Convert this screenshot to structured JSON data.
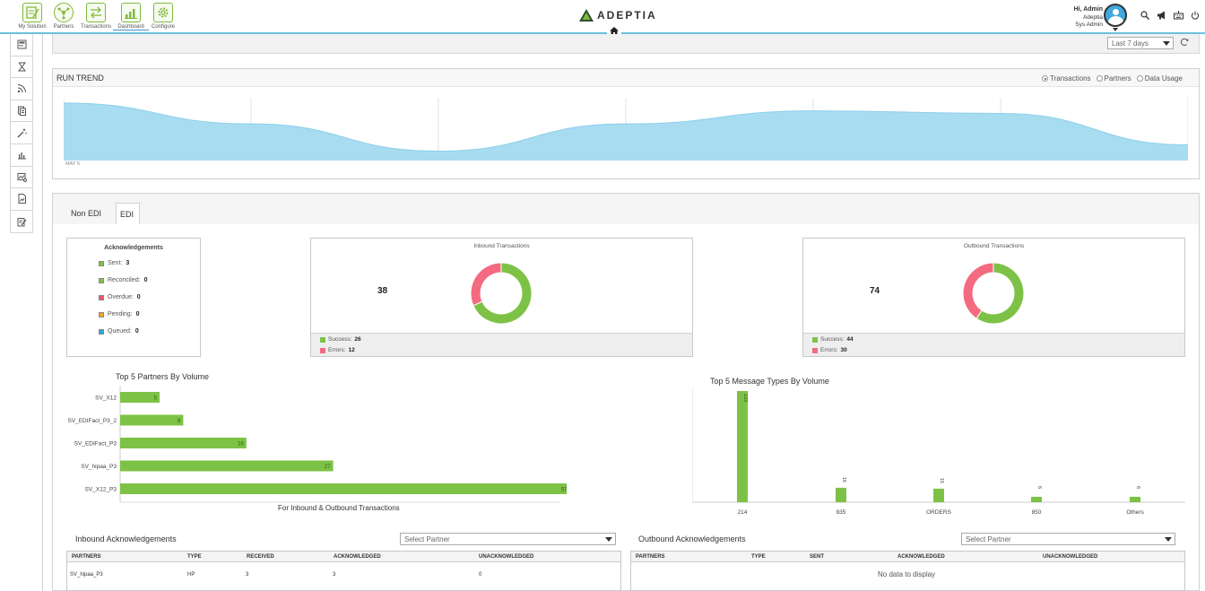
{
  "nav": {
    "items": [
      {
        "label": "My Solution",
        "icon": "my-solution-icon"
      },
      {
        "label": "Partners",
        "icon": "partners-icon"
      },
      {
        "label": "Transactions",
        "icon": "transactions-icon"
      },
      {
        "label": "Dashboard",
        "icon": "dashboard-icon",
        "active": true
      },
      {
        "label": "Configure",
        "icon": "configure-icon"
      }
    ],
    "brand": "ADEPTIA"
  },
  "user": {
    "greeting": "Hi, Admin",
    "company": "Adeptia",
    "role": "Sys Admin"
  },
  "filter": {
    "range": "Last 7 days"
  },
  "run_trend": {
    "title": "RUN TREND",
    "options": [
      "Transactions",
      "Partners",
      "Data Usage"
    ],
    "selected": "Transactions",
    "axis_label": "MAY 6"
  },
  "tabs": [
    "Non EDI",
    "EDI"
  ],
  "active_tab": "EDI",
  "acknowledgements": {
    "title": "Acknowledgements",
    "items": [
      {
        "label": "Sent:",
        "value": "3",
        "color": "#7dc246"
      },
      {
        "label": "Reconciled:",
        "value": "0",
        "color": "#7dc246"
      },
      {
        "label": "Overdue:",
        "value": "0",
        "color": "#f0566e"
      },
      {
        "label": "Pending:",
        "value": "0",
        "color": "#f5a623"
      },
      {
        "label": "Queued:",
        "value": "0",
        "color": "#29a8e0"
      }
    ]
  },
  "inbound": {
    "title": "Inbound Transactions",
    "total": "38",
    "success_label": "Success:",
    "success": 26,
    "errors_label": "Errors:",
    "errors": 12
  },
  "outbound": {
    "title": "Outbound Transactions",
    "total": "74",
    "success_label": "Success:",
    "success": 44,
    "errors_label": "Errors:",
    "errors": 30
  },
  "colors": {
    "success": "#7dc246",
    "error": "#f46a80",
    "trend": "#a8dcf1"
  },
  "chart_data": [
    {
      "type": "area",
      "title": "RUN TREND",
      "x": [
        "MAY 6",
        "",
        "",
        "",
        "",
        "",
        ""
      ],
      "values": [
        110,
        70,
        18,
        70,
        95,
        90,
        30
      ],
      "grid": true
    },
    {
      "type": "bar",
      "orientation": "horizontal",
      "title": "Top 5 Partners By Volume",
      "xlabel": "For Inbound & Outbound Transactions",
      "categories": [
        "SV_X12",
        "SV_EDIFact_P3_2",
        "SV_EDIFact_P3",
        "SV_hipaa_P3",
        "SV_X12_P3"
      ],
      "values": [
        5,
        8,
        16,
        27,
        57
      ],
      "xlim": [
        0,
        60
      ]
    },
    {
      "type": "bar",
      "title": "Top 5 Message Types By Volume",
      "categories": [
        "214",
        "835",
        "ORDERS",
        "850",
        "Others"
      ],
      "values": [
        123,
        16,
        15,
        6,
        6
      ],
      "ylim": [
        0,
        123
      ]
    }
  ],
  "charts_text": {
    "partners_title": "Top 5 Partners By Volume",
    "partners_caption": "For Inbound & Outbound Transactions",
    "messages_title": "Top 5 Message Types By Volume"
  },
  "inbound_acks": {
    "title": "Inbound Acknowledgements",
    "select_placeholder": "Select Partner",
    "columns": [
      "PARTNERS",
      "TYPE",
      "RECEIVED",
      "ACKNOWLEDGED",
      "UNACKNOWLEDGED"
    ],
    "rows": [
      [
        "SV_hipaa_P3",
        "HP",
        "3",
        "3",
        "0"
      ]
    ]
  },
  "outbound_acks": {
    "title": "Outbound Acknowledgements",
    "select_placeholder": "Select Partner",
    "columns": [
      "PARTNERS",
      "TYPE",
      "SENT",
      "ACKNOWLEDGED",
      "UNACKNOWLEDGED"
    ],
    "empty": "No data to display"
  }
}
